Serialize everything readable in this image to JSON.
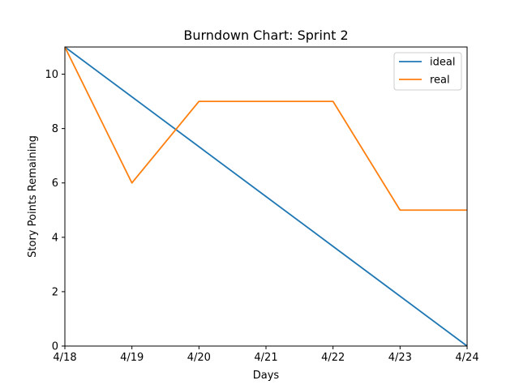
{
  "chart_data": {
    "type": "line",
    "title": "Burndown Chart: Sprint 2",
    "xlabel": "Days",
    "ylabel": "Story Points Remaining",
    "categories": [
      "4/18",
      "4/19",
      "4/20",
      "4/21",
      "4/22",
      "4/23",
      "4/24"
    ],
    "ylim": [
      0,
      11
    ],
    "yticks": [
      0,
      2,
      4,
      6,
      8,
      10
    ],
    "grid": false,
    "legend_position": "top-right",
    "series": [
      {
        "name": "ideal",
        "color": "#1f77b4",
        "values": [
          11,
          9.1667,
          7.3333,
          5.5,
          3.6667,
          1.8333,
          0
        ]
      },
      {
        "name": "real",
        "color": "#ff7f0e",
        "values": [
          11,
          6,
          9,
          9,
          9,
          5,
          5
        ]
      }
    ]
  }
}
